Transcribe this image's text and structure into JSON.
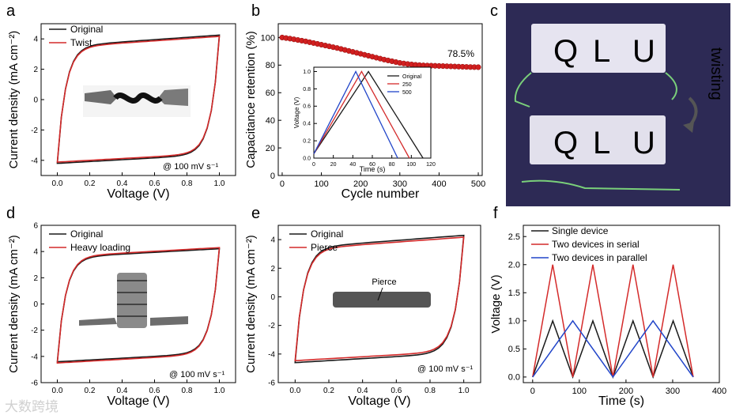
{
  "panel_labels": {
    "a": "a",
    "b": "b",
    "c": "c",
    "d": "d",
    "e": "e",
    "f": "f"
  },
  "watermark": "大数跨境",
  "colors": {
    "black": "#1a1a1a",
    "red": "#d42a2a",
    "blue": "#2145c9",
    "marker": "#d11f1f",
    "photo_bg": "#2d2a55",
    "led": "#cfd6ff"
  },
  "panel_c": {
    "annotation": "twisting",
    "led_text": "QLU"
  },
  "chart_data": [
    {
      "id": "a",
      "type": "line",
      "xlabel": "Voltage (V)",
      "ylabel": "Current density (mA cm⁻²)",
      "xlim": [
        -0.1,
        1.1
      ],
      "ylim": [
        -5,
        5
      ],
      "xticks": [
        "0.0",
        "0.2",
        "0.4",
        "0.6",
        "0.8",
        "1.0"
      ],
      "yticks": [
        "-4",
        "-2",
        "0",
        "2",
        "4"
      ],
      "annotation": "@ 100 mV s⁻¹",
      "series": [
        {
          "name": "Original",
          "color": "black",
          "scale": 1.0
        },
        {
          "name": "Twist",
          "color": "red",
          "scale": 0.98
        }
      ],
      "cv": {
        "top_start": 3.5,
        "top_end": 4.25,
        "bottom_start": -4.2,
        "bottom_end": -3.6
      }
    },
    {
      "id": "b",
      "type": "scatter",
      "xlabel": "Cycle number",
      "ylabel": "Capacitance retention (%)",
      "xlim": [
        -10,
        510
      ],
      "ylim": [
        0,
        110
      ],
      "xticks": [
        "0",
        "100",
        "200",
        "300",
        "400",
        "500"
      ],
      "yticks": [
        "0",
        "20",
        "40",
        "60",
        "80",
        "100"
      ],
      "annotation": "78.5%",
      "x": [
        0,
        10,
        20,
        30,
        40,
        50,
        60,
        70,
        80,
        90,
        100,
        110,
        120,
        130,
        140,
        150,
        160,
        170,
        180,
        190,
        200,
        210,
        220,
        230,
        240,
        250,
        260,
        270,
        280,
        290,
        300,
        310,
        320,
        330,
        340,
        350,
        360,
        370,
        380,
        390,
        400,
        410,
        420,
        430,
        440,
        450,
        460,
        470,
        480,
        490,
        500
      ],
      "y": [
        100,
        99.6,
        99.2,
        98.7,
        98.2,
        97.7,
        97.2,
        96.6,
        96.0,
        95.4,
        94.8,
        94.2,
        93.6,
        93.0,
        92.4,
        91.7,
        91.0,
        90.3,
        89.6,
        88.9,
        88.2,
        87.5,
        86.8,
        86.1,
        85.4,
        84.7,
        84.0,
        83.4,
        82.8,
        82.2,
        81.6,
        81.2,
        80.8,
        80.5,
        80.2,
        80.0,
        79.8,
        79.7,
        79.6,
        79.5,
        79.4,
        79.3,
        79.2,
        79.1,
        79.0,
        78.9,
        78.8,
        78.7,
        78.6,
        78.55,
        78.5
      ]
    },
    {
      "id": "b_inset",
      "type": "line",
      "xlabel": "Time (s)",
      "ylabel": "Voltage (V)",
      "xlim": [
        0,
        120
      ],
      "ylim": [
        0,
        1.05
      ],
      "xticks": [
        "0",
        "20",
        "40",
        "60",
        "80",
        "100",
        "120"
      ],
      "yticks": [
        "0.0",
        "0.2",
        "0.4",
        "0.6",
        "0.8",
        "1.0"
      ],
      "series": [
        {
          "name": "Original",
          "color": "black",
          "peak": 56,
          "end": 112
        },
        {
          "name": "250",
          "color": "red",
          "peak": 49,
          "end": 98
        },
        {
          "name": "500",
          "color": "blue",
          "peak": 43,
          "end": 86
        }
      ]
    },
    {
      "id": "d",
      "type": "line",
      "xlabel": "Voltage (V)",
      "ylabel": "Current density (mA cm⁻²)",
      "xlim": [
        -0.1,
        1.1
      ],
      "ylim": [
        -6,
        6
      ],
      "xticks": [
        "0.0",
        "0.2",
        "0.4",
        "0.6",
        "0.8",
        "1.0"
      ],
      "yticks": [
        "-6",
        "-4",
        "-2",
        "0",
        "2",
        "4",
        "6"
      ],
      "annotation": "@ 100 mV s⁻¹",
      "series": [
        {
          "name": "Original",
          "color": "black",
          "scale": 0.98
        },
        {
          "name": "Heavy loading",
          "color": "red",
          "scale": 1.0
        }
      ],
      "cv": {
        "top_start": 3.6,
        "top_end": 4.3,
        "bottom_start": -4.5,
        "bottom_end": -3.8
      }
    },
    {
      "id": "e",
      "type": "line",
      "xlabel": "Voltage (V)",
      "ylabel": "Current density (mA cm⁻²)",
      "xlim": [
        -0.1,
        1.1
      ],
      "ylim": [
        -6,
        5
      ],
      "xticks": [
        "0.0",
        "0.2",
        "0.4",
        "0.6",
        "0.8",
        "1.0"
      ],
      "yticks": [
        "-6",
        "-4",
        "-2",
        "0",
        "2",
        "4"
      ],
      "annotation": "@ 100 mV s⁻¹",
      "inset_label": "Pierce",
      "series": [
        {
          "name": "Original",
          "color": "black",
          "scale": 1.0
        },
        {
          "name": "Pierce",
          "color": "red",
          "scale": 0.97
        }
      ],
      "cv": {
        "top_start": 3.4,
        "top_end": 4.3,
        "bottom_start": -4.6,
        "bottom_end": -3.9
      }
    },
    {
      "id": "f",
      "type": "line",
      "xlabel": "Time (s)",
      "ylabel": "Voltage (V)",
      "xlim": [
        -20,
        400
      ],
      "ylim": [
        -0.1,
        2.7
      ],
      "xticks": [
        "0",
        "100",
        "200",
        "300",
        "400"
      ],
      "yticks": [
        "0.0",
        "0.5",
        "1.0",
        "1.5",
        "2.0",
        "2.5"
      ],
      "series": [
        {
          "name": "Single device",
          "color": "black",
          "x": [
            0,
            43,
            86,
            129,
            172,
            215,
            258,
            301,
            344
          ],
          "y": [
            0,
            1,
            0,
            1,
            0,
            1,
            0,
            1,
            0
          ]
        },
        {
          "name": "Two devices in serial",
          "color": "red",
          "x": [
            0,
            43,
            86,
            129,
            172,
            215,
            258,
            301,
            344
          ],
          "y": [
            0,
            2,
            0,
            2,
            0,
            2,
            0,
            2,
            0
          ]
        },
        {
          "name": "Two devices in parallel",
          "color": "blue",
          "x": [
            0,
            86,
            172,
            258,
            344
          ],
          "y": [
            0,
            1,
            0,
            1,
            0
          ]
        }
      ]
    }
  ]
}
